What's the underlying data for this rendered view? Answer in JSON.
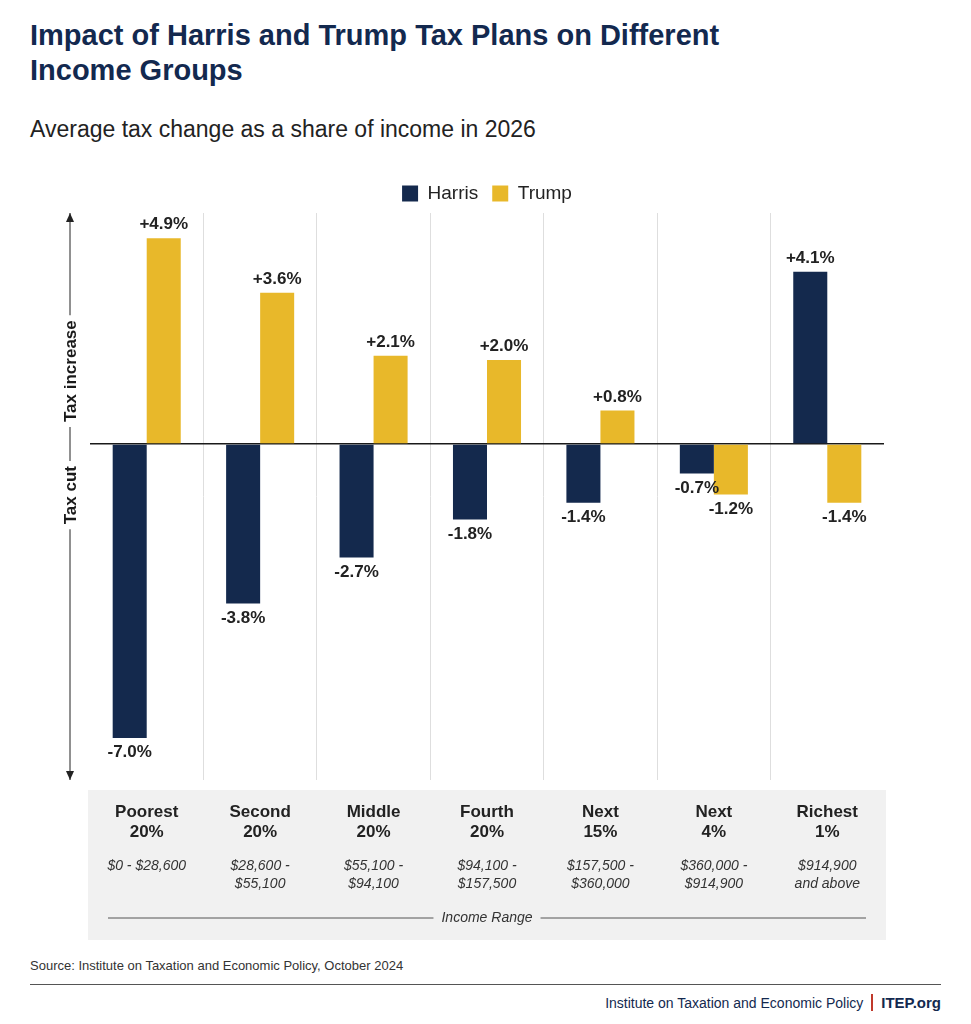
{
  "chart_data": {
    "type": "bar",
    "title": "Impact of Harris and Trump Tax Plans on Different Income Groups",
    "subtitle": "Average tax change as a share of income in 2026",
    "categories": [
      "Poorest 20%",
      "Second 20%",
      "Middle 20%",
      "Fourth 20%",
      "Next 15%",
      "Next 4%",
      "Richest 1%"
    ],
    "category_ranges": [
      "$0 - $28,600",
      "$28,600 - $55,100",
      "$55,100 - $94,100",
      "$94,100 - $157,500",
      "$157,500 - $360,000",
      "$360,000 - $914,900",
      "$914,900 and above"
    ],
    "x_label": "Income Range",
    "y_labels": {
      "positive": "Tax increase",
      "negative": "Tax cut"
    },
    "series": [
      {
        "name": "Harris",
        "color": "#14294d",
        "values": [
          -7.0,
          -3.8,
          -2.7,
          -1.8,
          -1.4,
          -0.7,
          4.1
        ],
        "value_labels": [
          "-7.0%",
          "-3.8%",
          "-2.7%",
          "-1.8%",
          "-1.4%",
          "-0.7%",
          "+4.1%"
        ]
      },
      {
        "name": "Trump",
        "color": "#e8b82a",
        "values": [
          4.9,
          3.6,
          2.1,
          2.0,
          0.8,
          -1.2,
          -1.4
        ],
        "value_labels": [
          "+4.9%",
          "+3.6%",
          "+2.1%",
          "+2.0%",
          "+0.8%",
          "-1.2%",
          "-1.4%"
        ]
      }
    ],
    "ylim": [
      -8,
      5.5
    ],
    "yticks": [
      0
    ],
    "grid": true,
    "legend": "top",
    "data_labels": true,
    "tick_labels": "x",
    "source": "Source: Institute on Taxation and Economic Policy, October 2024",
    "footer": {
      "organization": "Institute on Taxation and Economic Policy",
      "site": "ITEP.org"
    }
  }
}
